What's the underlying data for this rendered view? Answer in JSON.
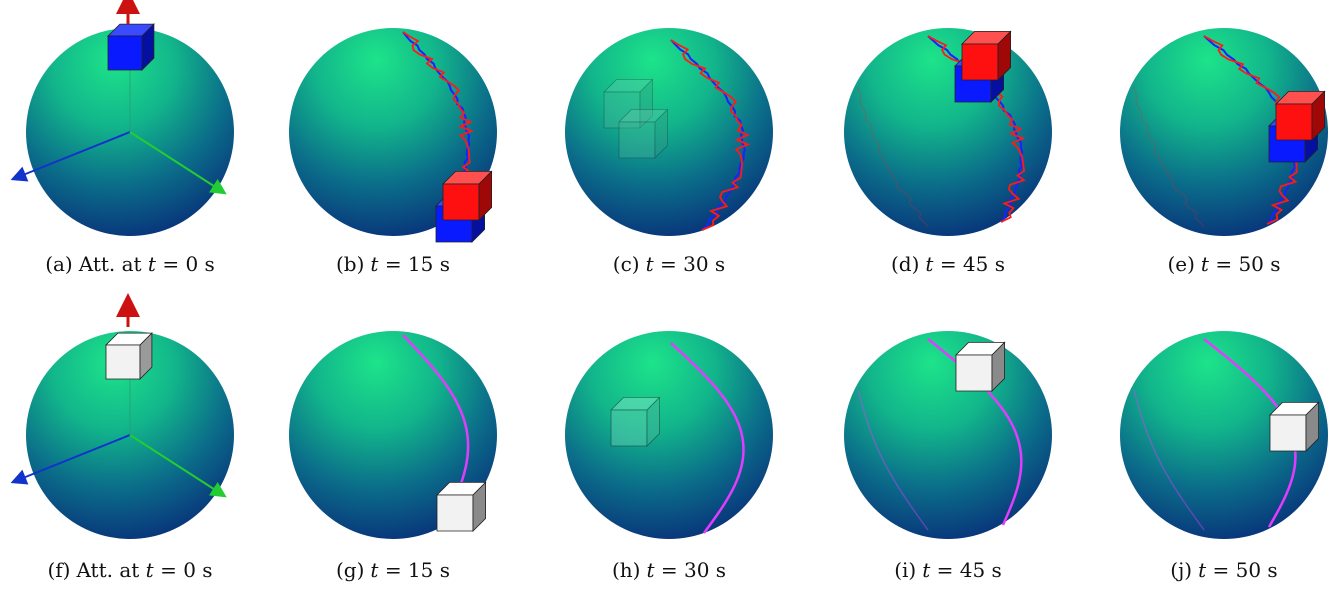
{
  "panels": [
    {
      "id": "a",
      "label": "(a)",
      "prefix": "Att. at",
      "var": "t",
      "eq": "= 0 s",
      "row": 0,
      "kind": "initial"
    },
    {
      "id": "b",
      "label": "(b)",
      "prefix": "",
      "var": "t",
      "eq": "= 15 s",
      "row": 0,
      "kind": "t15"
    },
    {
      "id": "c",
      "label": "(c)",
      "prefix": "",
      "var": "t",
      "eq": "= 30 s",
      "row": 0,
      "kind": "t30"
    },
    {
      "id": "d",
      "label": "(d)",
      "prefix": "",
      "var": "t",
      "eq": "= 45 s",
      "row": 0,
      "kind": "t45"
    },
    {
      "id": "e",
      "label": "(e)",
      "prefix": "",
      "var": "t",
      "eq": "= 50 s",
      "row": 0,
      "kind": "t50"
    },
    {
      "id": "f",
      "label": "(f)",
      "prefix": "Att. at",
      "var": "t",
      "eq": "= 0 s",
      "row": 1,
      "kind": "initial"
    },
    {
      "id": "g",
      "label": "(g)",
      "prefix": "",
      "var": "t",
      "eq": "= 15 s",
      "row": 1,
      "kind": "t15"
    },
    {
      "id": "h",
      "label": "(h)",
      "prefix": "",
      "var": "t",
      "eq": "= 30 s",
      "row": 1,
      "kind": "t30"
    },
    {
      "id": "i",
      "label": "(i)",
      "prefix": "",
      "var": "t",
      "eq": "= 45 s",
      "row": 1,
      "kind": "t45"
    },
    {
      "id": "j",
      "label": "(j)",
      "prefix": "",
      "var": "t",
      "eq": "= 50 s",
      "row": 1,
      "kind": "t50"
    }
  ],
  "colors": {
    "sphere_light": "#1de48a",
    "sphere_mid": "#0f8f88",
    "sphere_dark": "#082a78",
    "trace_red": "#ff1a1a",
    "trace_blue": "#1a22ff",
    "trace_magenta": "#e23cff",
    "axis_red": "#cc1111",
    "axis_blue": "#1133cc",
    "axis_green": "#22cc33",
    "cube_red": "#ff1010",
    "cube_blue": "#0a1aff",
    "cube_white": "#f2f2f2"
  }
}
